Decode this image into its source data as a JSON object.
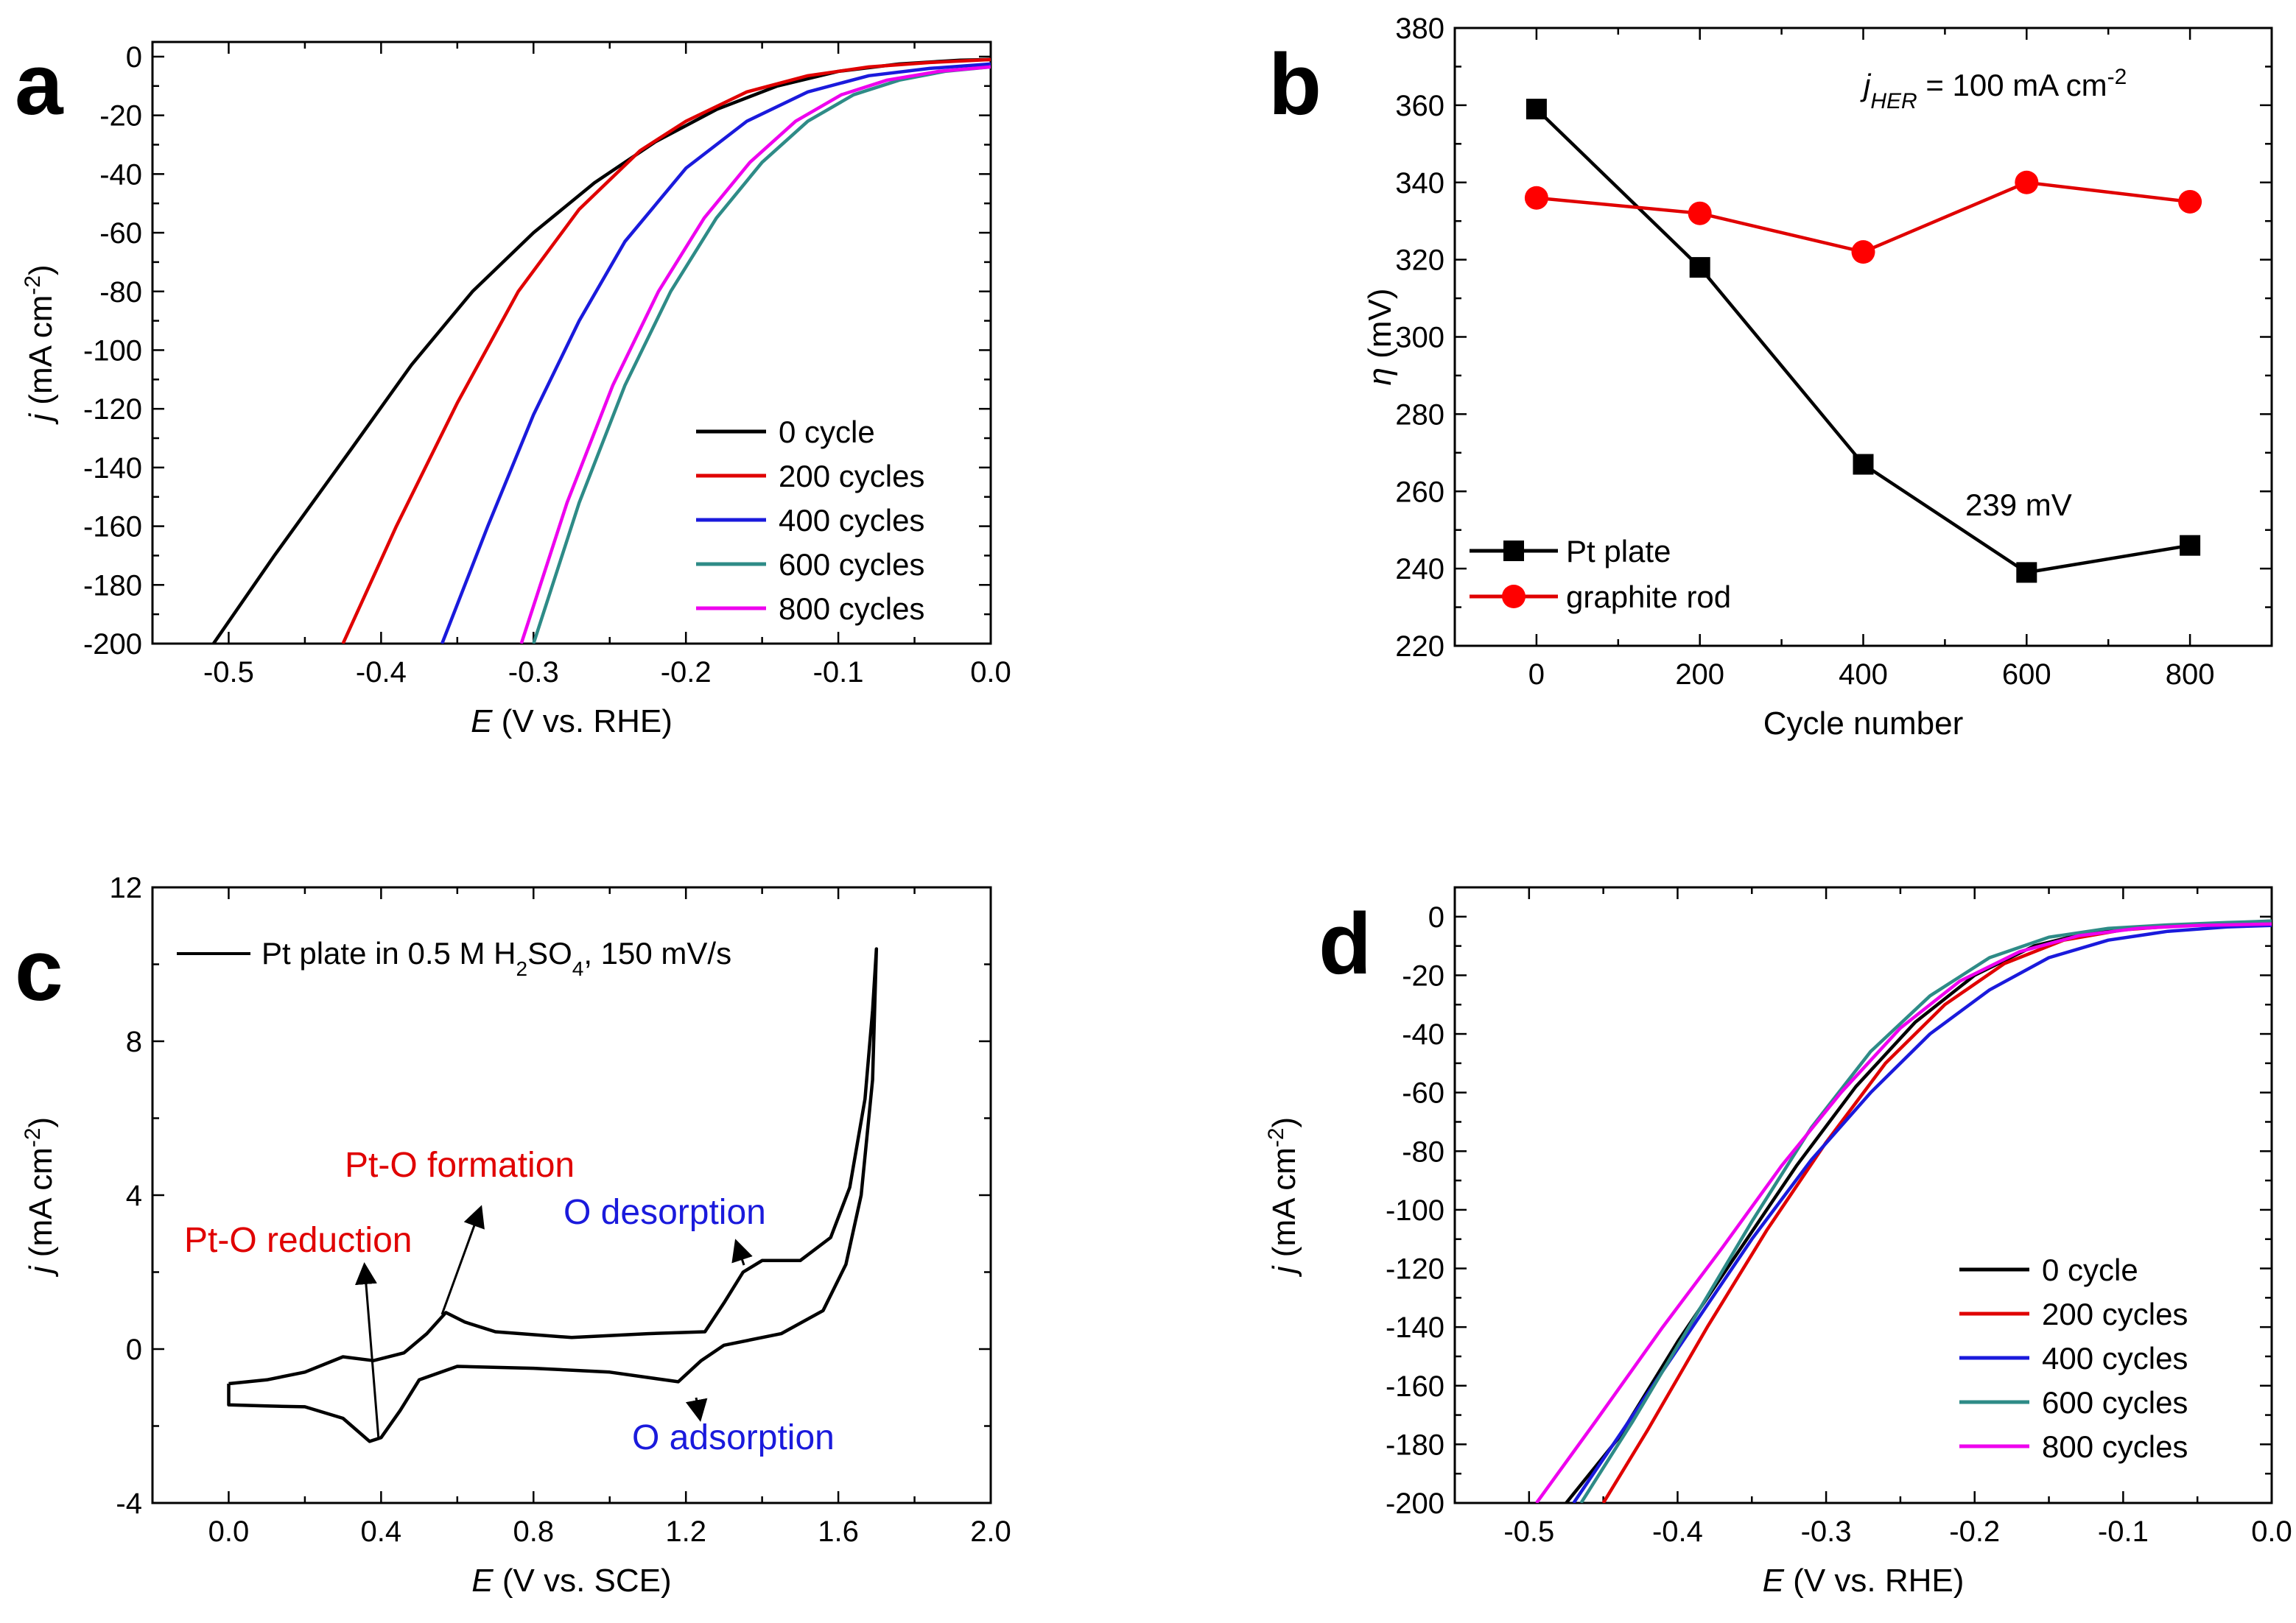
{
  "chart_data": [
    {
      "panel": "a",
      "type": "line",
      "xlabel_italic": "E",
      "xlabel_rest": " (V vs. RHE)",
      "ylabel_italic": "j",
      "ylabel_rest": " (mA cm",
      "ylabel_sup": "-2",
      "ylabel_close": ")",
      "xlim": [
        -0.55,
        0.0
      ],
      "ylim": [
        -200,
        5
      ],
      "xticks": [
        -0.5,
        -0.4,
        -0.3,
        -0.2,
        -0.1,
        0.0
      ],
      "xtick_labels": [
        "-0.5",
        "-0.4",
        "-0.3",
        "-0.2",
        "-0.1",
        "0.0"
      ],
      "yticks": [
        0,
        -20,
        -40,
        -60,
        -80,
        -100,
        -120,
        -140,
        -160,
        -180,
        -200
      ],
      "ytick_labels": [
        "0",
        "-20",
        "-40",
        "-60",
        "-80",
        "-100",
        "-120",
        "-140",
        "-160",
        "-180",
        "-200"
      ],
      "legend": "lower-right",
      "series": [
        {
          "name": "0 cycle",
          "color": "#000000",
          "x": [
            -0.51,
            -0.47,
            -0.42,
            -0.38,
            -0.34,
            -0.3,
            -0.26,
            -0.22,
            -0.18,
            -0.14,
            -0.1,
            -0.06,
            -0.02,
            0.0
          ],
          "y": [
            -200,
            -170,
            -134,
            -105,
            -80,
            -60,
            -43,
            -29,
            -18,
            -10,
            -5,
            -2.5,
            -1.2,
            -1
          ]
        },
        {
          "name": "200 cycles",
          "color": "#e00000",
          "x": [
            -0.425,
            -0.39,
            -0.35,
            -0.31,
            -0.27,
            -0.23,
            -0.2,
            -0.16,
            -0.12,
            -0.08,
            -0.04,
            0.0
          ],
          "y": [
            -200,
            -160,
            -118,
            -80,
            -52,
            -32,
            -22,
            -12,
            -6.5,
            -3.5,
            -2,
            -1
          ]
        },
        {
          "name": "400 cycles",
          "color": "#1a1adc",
          "x": [
            -0.36,
            -0.33,
            -0.3,
            -0.27,
            -0.24,
            -0.2,
            -0.16,
            -0.12,
            -0.08,
            -0.04,
            0.0
          ],
          "y": [
            -200,
            -160,
            -122,
            -90,
            -63,
            -38,
            -22,
            -12,
            -6.5,
            -4,
            -2.5
          ]
        },
        {
          "name": "600 cycles",
          "color": "#2e8b87",
          "x": [
            -0.3,
            -0.27,
            -0.24,
            -0.21,
            -0.18,
            -0.15,
            -0.12,
            -0.09,
            -0.06,
            -0.03,
            0.0
          ],
          "y": [
            -200,
            -152,
            -112,
            -80,
            -55,
            -36,
            -22,
            -13,
            -8,
            -5,
            -3.5
          ]
        },
        {
          "name": "800 cycles",
          "color": "#ee00ee",
          "x": [
            -0.308,
            -0.278,
            -0.248,
            -0.218,
            -0.188,
            -0.158,
            -0.128,
            -0.098,
            -0.068,
            -0.034,
            0.0
          ],
          "y": [
            -200,
            -152,
            -112,
            -80,
            -55,
            -36,
            -22,
            -13,
            -8,
            -5,
            -3.5
          ]
        }
      ]
    },
    {
      "panel": "b",
      "type": "line",
      "xlabel": "Cycle number",
      "ylabel_italic": "η",
      "ylabel_rest": " (mV)",
      "annotation_j": "j",
      "annotation_sub": "HER",
      "annotation_rest": " = 100 mA cm",
      "annotation_sup": "-2",
      "value_label": "239 mV",
      "xlim": [
        -100,
        900
      ],
      "ylim": [
        220,
        380
      ],
      "xticks": [
        0,
        200,
        400,
        600,
        800
      ],
      "xtick_labels": [
        "0",
        "200",
        "400",
        "600",
        "800"
      ],
      "yticks": [
        220,
        240,
        260,
        280,
        300,
        320,
        340,
        360,
        380
      ],
      "ytick_labels": [
        "220",
        "240",
        "260",
        "280",
        "300",
        "320",
        "340",
        "360",
        "380"
      ],
      "legend": "lower-left",
      "series": [
        {
          "name": "Pt plate",
          "color": "#000000",
          "marker": "square",
          "x": [
            0,
            200,
            400,
            600,
            800
          ],
          "y": [
            359,
            318,
            267,
            239,
            246
          ]
        },
        {
          "name": "graphite rod",
          "color": "#ff0000",
          "line_color": "#e00000",
          "marker": "circle",
          "x": [
            0,
            200,
            400,
            600,
            800
          ],
          "y": [
            336,
            332,
            322,
            340,
            335
          ]
        }
      ]
    },
    {
      "panel": "c",
      "type": "line",
      "xlabel_italic": "E",
      "xlabel_rest": " (V vs. SCE)",
      "ylabel_italic": "j",
      "ylabel_rest": " (mA cm",
      "ylabel_sup": "-2",
      "ylabel_close": ")",
      "xlim": [
        -0.2,
        2.0
      ],
      "ylim": [
        -4,
        12
      ],
      "xticks": [
        0.0,
        0.4,
        0.8,
        1.2,
        1.6,
        2.0
      ],
      "xtick_labels": [
        "0.0",
        "0.4",
        "0.8",
        "1.2",
        "1.6",
        "2.0"
      ],
      "yticks": [
        -4,
        0,
        4,
        8,
        12
      ],
      "ytick_labels": [
        "-4",
        "0",
        "4",
        "8",
        "12"
      ],
      "legend_text": "Pt plate in 0.5 M H",
      "legend_sub": "2",
      "legend_mid": "SO",
      "legend_sub2": "4",
      "legend_tail": ", 150 mV/s",
      "annotations": [
        {
          "text": "Pt-O formation",
          "color": "#e00000"
        },
        {
          "text": "Pt-O reduction",
          "color": "#e00000"
        },
        {
          "text": "O desorption",
          "color": "#1a1adc"
        },
        {
          "text": "O adsorption",
          "color": "#1a1adc"
        }
      ],
      "series": [
        {
          "name": "Pt plate in 0.5 M H2SO4, 150 mV/s",
          "color": "#000000",
          "x": [
            0.0,
            0.1,
            0.2,
            0.3,
            0.38,
            0.46,
            0.52,
            0.57,
            0.62,
            0.7,
            0.9,
            1.1,
            1.25,
            1.3,
            1.35,
            1.4,
            1.5,
            1.58,
            1.63,
            1.67,
            1.69,
            1.7,
            1.69,
            1.66,
            1.62,
            1.56,
            1.45,
            1.3,
            1.24,
            1.18,
            1.0,
            0.8,
            0.6,
            0.5,
            0.45,
            0.4,
            0.37,
            0.3,
            0.2,
            0.1,
            0.0,
            0.0
          ],
          "y": [
            -0.9,
            -0.8,
            -0.6,
            -0.2,
            -0.3,
            -0.1,
            0.4,
            0.95,
            0.7,
            0.45,
            0.3,
            0.4,
            0.45,
            1.2,
            2.0,
            2.3,
            2.3,
            2.9,
            4.2,
            6.5,
            8.8,
            10.4,
            7.0,
            4.0,
            2.2,
            1.0,
            0.4,
            0.1,
            -0.3,
            -0.85,
            -0.6,
            -0.5,
            -0.45,
            -0.8,
            -1.6,
            -2.3,
            -2.4,
            -1.8,
            -1.5,
            -1.48,
            -1.45,
            -0.9
          ]
        }
      ]
    },
    {
      "panel": "d",
      "type": "line",
      "xlabel_italic": "E",
      "xlabel_rest": " (V vs. RHE)",
      "ylabel_italic": "j",
      "ylabel_rest": " (mA cm",
      "ylabel_sup": "-2",
      "ylabel_close": ")",
      "xlim": [
        -0.55,
        0.0
      ],
      "ylim": [
        -200,
        10
      ],
      "xticks": [
        -0.5,
        -0.4,
        -0.3,
        -0.2,
        -0.1,
        0.0
      ],
      "xtick_labels": [
        "-0.5",
        "-0.4",
        "-0.3",
        "-0.2",
        "-0.1",
        "0.0"
      ],
      "yticks": [
        0,
        -20,
        -40,
        -60,
        -80,
        -100,
        -120,
        -140,
        -160,
        -180,
        -200
      ],
      "ytick_labels": [
        "0",
        "-20",
        "-40",
        "-60",
        "-80",
        "-100",
        "-120",
        "-140",
        "-160",
        "-180",
        "-200"
      ],
      "legend": "lower-right",
      "series": [
        {
          "name": "0 cycle",
          "color": "#000000",
          "x": [
            -0.475,
            -0.44,
            -0.4,
            -0.36,
            -0.32,
            -0.28,
            -0.24,
            -0.2,
            -0.16,
            -0.12,
            -0.08,
            -0.04,
            0.0
          ],
          "y": [
            -200,
            -178,
            -145,
            -115,
            -85,
            -58,
            -36,
            -20,
            -10,
            -5,
            -3.5,
            -2.5,
            -1.8
          ]
        },
        {
          "name": "200 cycles",
          "color": "#e00000",
          "x": [
            -0.45,
            -0.42,
            -0.38,
            -0.34,
            -0.3,
            -0.26,
            -0.22,
            -0.18,
            -0.14,
            -0.1,
            -0.06,
            -0.02,
            0.0
          ],
          "y": [
            -200,
            -175,
            -140,
            -107,
            -77,
            -50,
            -30,
            -16,
            -8,
            -4.5,
            -3,
            -2,
            -1.5
          ]
        },
        {
          "name": "400 cycles",
          "color": "#1a1adc",
          "x": [
            -0.47,
            -0.43,
            -0.39,
            -0.35,
            -0.31,
            -0.27,
            -0.23,
            -0.19,
            -0.15,
            -0.11,
            -0.07,
            -0.03,
            0.0
          ],
          "y": [
            -200,
            -170,
            -140,
            -110,
            -83,
            -60,
            -40,
            -25,
            -14,
            -8,
            -5,
            -3.5,
            -3
          ]
        },
        {
          "name": "600 cycles",
          "color": "#2e8b87",
          "x": [
            -0.465,
            -0.43,
            -0.39,
            -0.35,
            -0.31,
            -0.27,
            -0.23,
            -0.19,
            -0.15,
            -0.11,
            -0.07,
            -0.03,
            0.0
          ],
          "y": [
            -200,
            -172,
            -138,
            -104,
            -72,
            -46,
            -27,
            -14,
            -7,
            -4,
            -2.8,
            -2,
            -1.5
          ]
        },
        {
          "name": "800 cycles",
          "color": "#ee00ee",
          "x": [
            -0.495,
            -0.455,
            -0.41,
            -0.37,
            -0.33,
            -0.29,
            -0.25,
            -0.21,
            -0.17,
            -0.13,
            -0.09,
            -0.05,
            0.0
          ],
          "y": [
            -200,
            -172,
            -140,
            -113,
            -85,
            -60,
            -38,
            -22,
            -12,
            -6.5,
            -4,
            -3,
            -2.5
          ]
        }
      ]
    }
  ]
}
